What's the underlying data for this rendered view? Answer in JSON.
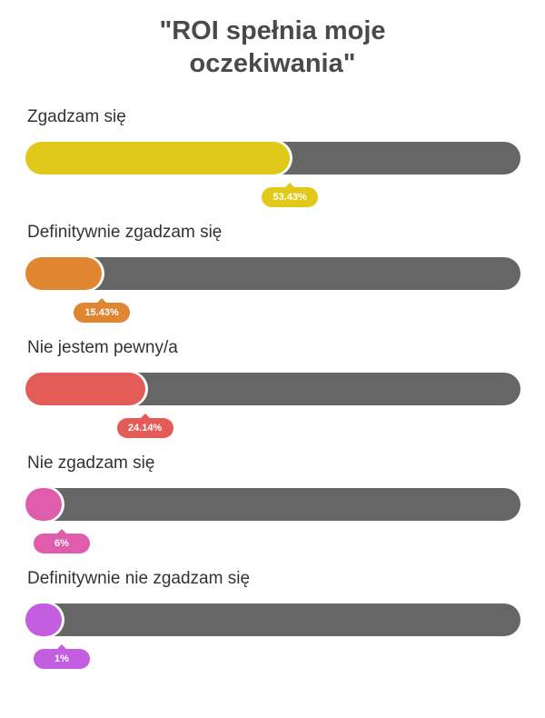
{
  "chart_data": {
    "type": "bar",
    "title_lines": [
      "\"ROI spełnia moje",
      "oczekiwania\""
    ],
    "categories": [
      "Zgadzam się",
      "Definitywnie zgadzam się",
      "Nie jestem pewny/a",
      "Nie zgadzam się",
      "Definitywnie nie zgadzam się"
    ],
    "values": [
      53.43,
      15.43,
      24.14,
      6,
      1
    ],
    "value_labels": [
      "53.43%",
      "15.43%",
      "24.14%",
      "6%",
      "1%"
    ],
    "ylim": [
      0,
      100
    ],
    "colors": [
      "#e1c919",
      "#e08530",
      "#e45c58",
      "#e05cac",
      "#c35ee0"
    ],
    "track_color": "#666666"
  }
}
